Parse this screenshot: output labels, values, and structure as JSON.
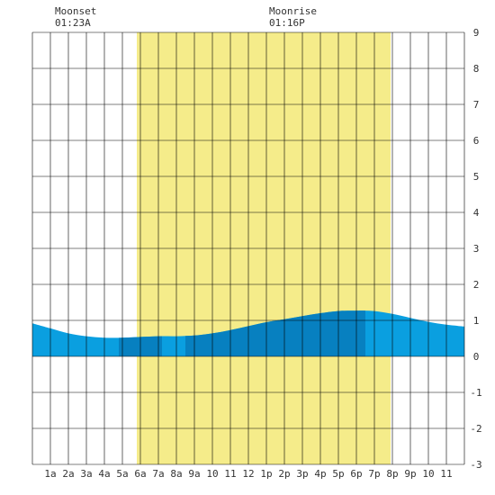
{
  "moon_events": [
    {
      "label": "Moonset",
      "time": "01:23A",
      "hour": 1.383
    },
    {
      "label": "Moonrise",
      "time": "01:16P",
      "hour": 13.267
    }
  ],
  "colors": {
    "daylight": "#f5ec8a",
    "tide_light": "#0a9fe0",
    "tide_dark": "#0780c0",
    "grid": "#000000",
    "background": "#ffffff"
  },
  "chart_data": {
    "type": "area",
    "xlim": [
      0,
      24
    ],
    "ylim": [
      -3,
      9
    ],
    "yticks": [
      9,
      8,
      7,
      6,
      5,
      4,
      3,
      2,
      1,
      0,
      -1,
      -2,
      -3
    ],
    "yticklabels": [
      "9",
      "8",
      "7",
      "6",
      "5",
      "4",
      "3",
      "2",
      "1",
      "0",
      "-1",
      "-2",
      "-3"
    ],
    "xticks": [
      1,
      2,
      3,
      4,
      5,
      6,
      7,
      8,
      9,
      10,
      11,
      12,
      13,
      14,
      15,
      16,
      17,
      18,
      19,
      20,
      21,
      22,
      23
    ],
    "xticklabels": [
      "1a",
      "2a",
      "3a",
      "4a",
      "5a",
      "6a",
      "7a",
      "8a",
      "9a",
      "10",
      "11",
      "12",
      "1p",
      "2p",
      "3p",
      "4p",
      "5p",
      "6p",
      "7p",
      "8p",
      "9p",
      "10",
      "11"
    ],
    "daylight": [
      5.8,
      19.9
    ],
    "dark_bands": [
      [
        4.8,
        7.2
      ],
      [
        8.5,
        18.5
      ]
    ],
    "x": [
      0,
      1,
      2,
      3,
      4,
      5,
      6,
      7,
      8,
      9,
      10,
      11,
      12,
      13,
      14,
      15,
      16,
      17,
      18,
      19,
      20,
      21,
      22,
      23,
      24
    ],
    "y": [
      0.92,
      0.78,
      0.64,
      0.56,
      0.52,
      0.52,
      0.54,
      0.56,
      0.56,
      0.58,
      0.64,
      0.73,
      0.84,
      0.95,
      1.03,
      1.12,
      1.2,
      1.26,
      1.27,
      1.26,
      1.18,
      1.07,
      0.96,
      0.88,
      0.83
    ]
  }
}
